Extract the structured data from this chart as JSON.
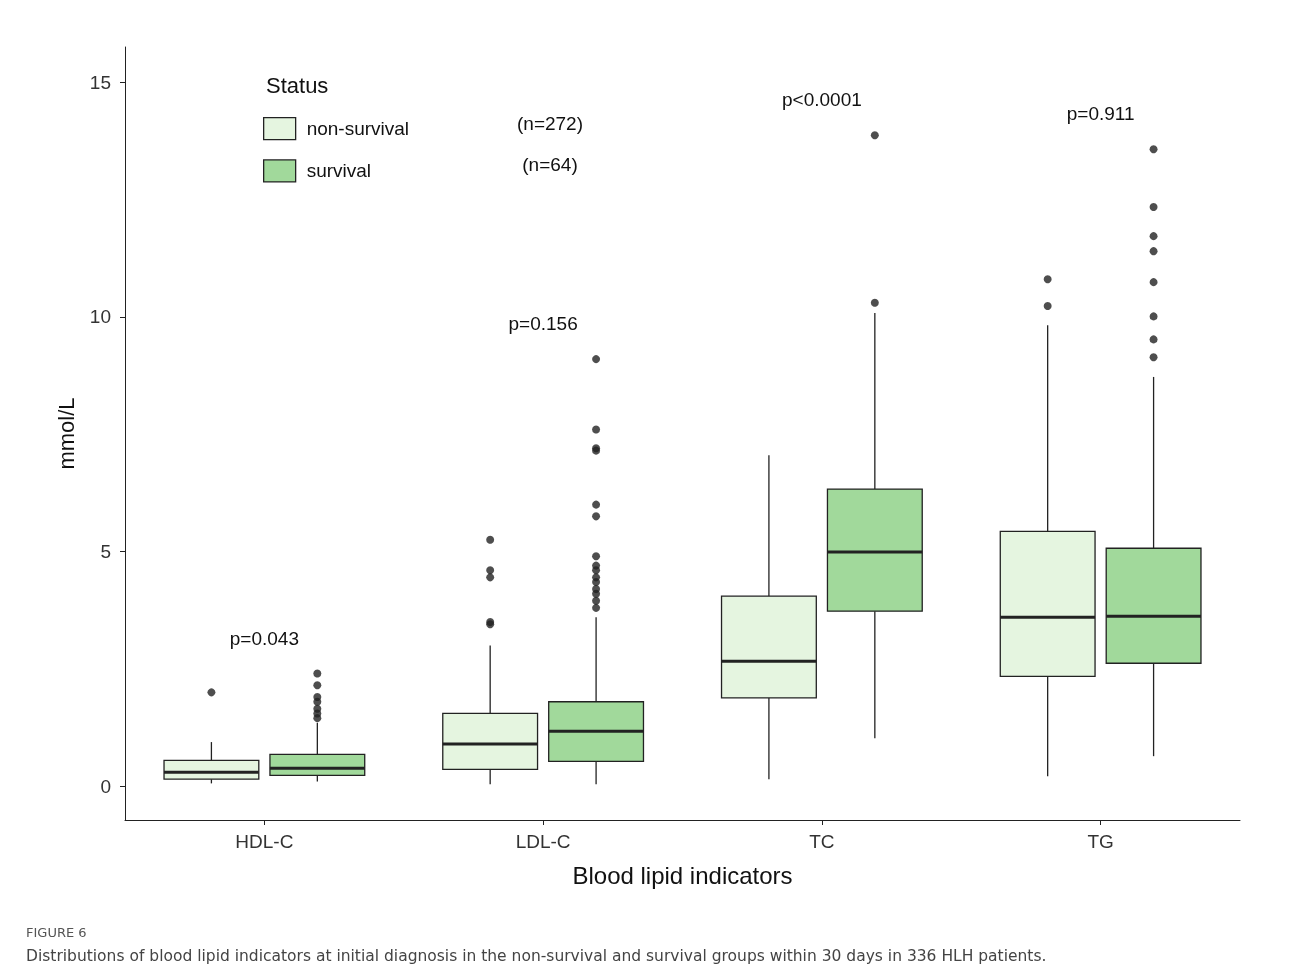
{
  "chart_data": {
    "type": "box",
    "xlabel": "Blood lipid indicators",
    "ylabel": "mmol/L",
    "legend_title": "Status",
    "legend": "top left",
    "grid": false,
    "categories": [
      "HDL-C",
      "LDL-C",
      "TC",
      "TG"
    ],
    "ylim": [
      -0.72,
      15.75
    ],
    "yticks": [
      0,
      5,
      10,
      15
    ],
    "series": [
      {
        "name": "non-survival",
        "color": "#e5f5e0",
        "boxes": [
          {
            "low": 0.06,
            "q1": 0.15,
            "median": 0.3,
            "q3": 0.55,
            "high": 0.94,
            "outliers": [
              2.0
            ]
          },
          {
            "low": 0.04,
            "q1": 0.36,
            "median": 0.9,
            "q3": 1.55,
            "high": 3.0,
            "outliers": [
              5.25,
              4.6,
              4.45,
              3.5,
              3.45
            ]
          },
          {
            "low": 0.15,
            "q1": 1.88,
            "median": 2.66,
            "q3": 4.05,
            "high": 7.05
          },
          {
            "low": 0.21,
            "q1": 2.34,
            "median": 3.6,
            "q3": 5.43,
            "high": 9.82,
            "outliers": [
              10.8,
              10.23
            ]
          }
        ]
      },
      {
        "name": "survival",
        "color": "#a1d99b",
        "boxes": [
          {
            "low": 0.1,
            "q1": 0.23,
            "median": 0.38,
            "q3": 0.68,
            "high": 1.35,
            "outliers": [
              2.4,
              2.15,
              1.9,
              1.8,
              1.65,
              1.55,
              1.45
            ]
          },
          {
            "low": 0.04,
            "q1": 0.53,
            "median": 1.17,
            "q3": 1.8,
            "high": 3.6,
            "outliers": [
              9.1,
              7.6,
              7.2,
              7.15,
              6.0,
              5.75,
              4.9,
              4.7,
              4.6,
              4.45,
              4.35,
              4.2,
              4.1,
              3.95,
              3.8
            ]
          },
          {
            "low": 1.02,
            "q1": 3.73,
            "median": 4.99,
            "q3": 6.33,
            "high": 10.08,
            "outliers": [
              10.3,
              13.87
            ]
          },
          {
            "low": 0.64,
            "q1": 2.62,
            "median": 3.62,
            "q3": 5.07,
            "high": 8.72,
            "outliers": [
              13.57,
              12.34,
              11.72,
              11.4,
              10.74,
              10.01,
              9.52,
              9.14
            ]
          }
        ]
      }
    ],
    "annotations": [
      "p=0.043",
      "p=0.156",
      "p<0.0001",
      "p=0.911",
      "(n=272)",
      "(n=64)",
      "FIGURE 6",
      "Distributions of blood lipid indicators at initial diagnosis in the non-survival and survival groups within 30 days in 336 HLH patients."
    ]
  }
}
